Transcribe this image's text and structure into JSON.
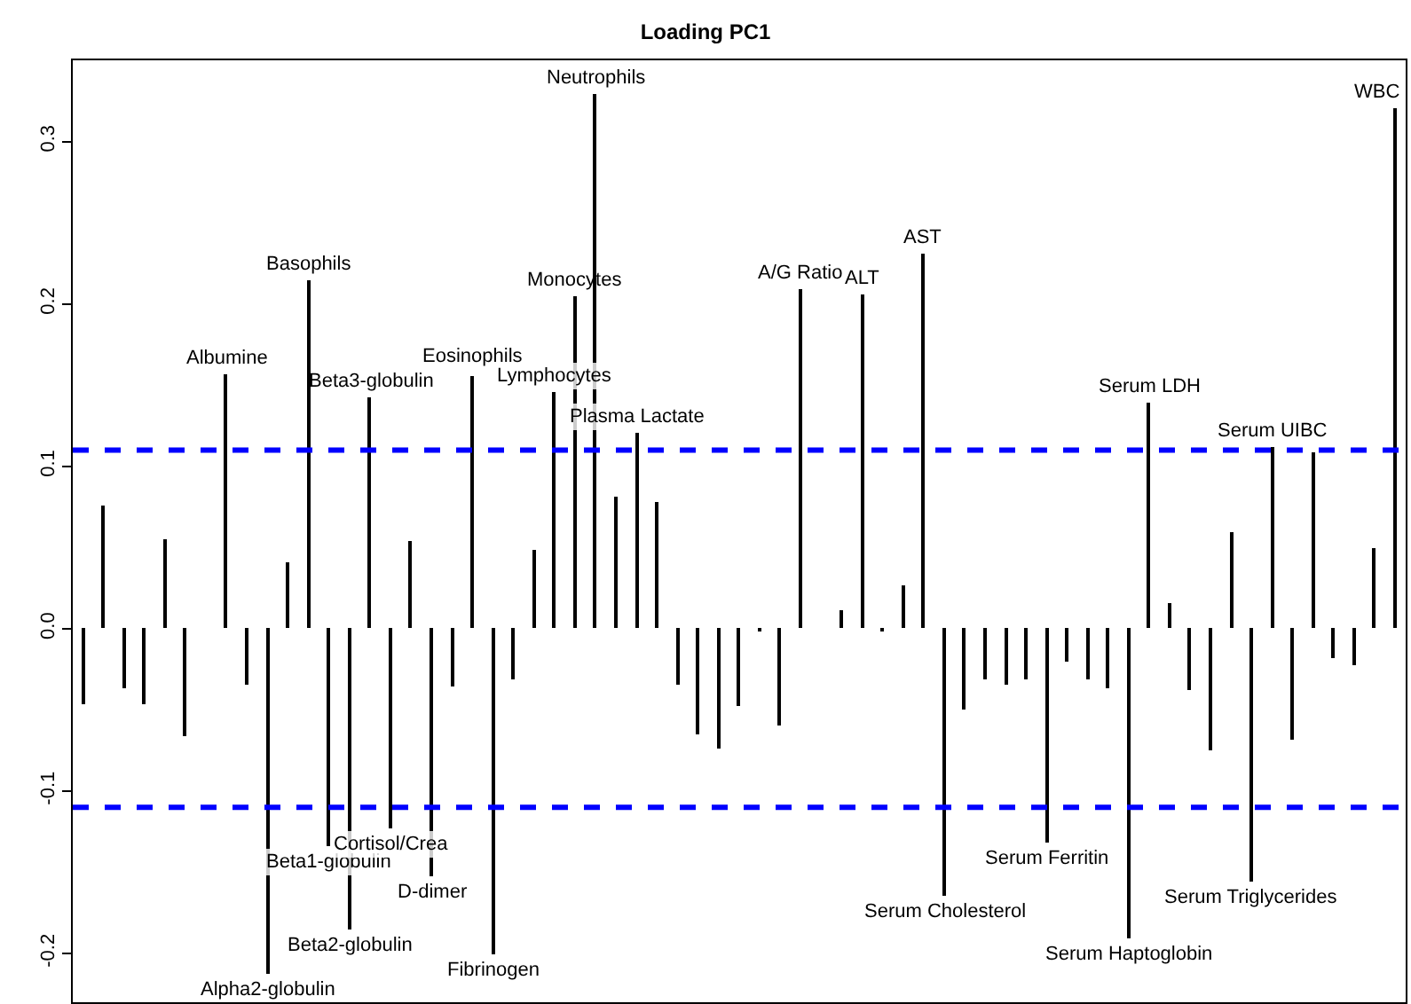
{
  "chart_data": {
    "type": "bar",
    "title": "Loading PC1",
    "tick_labels": "y",
    "categories": [
      null,
      null,
      null,
      null,
      null,
      null,
      null,
      null,
      null,
      null,
      null,
      null,
      null,
      null,
      null,
      null,
      null,
      null,
      null,
      null,
      null,
      null,
      null,
      null,
      null,
      null,
      null,
      null,
      null,
      null,
      null,
      null,
      null,
      null,
      null,
      null,
      null,
      null,
      null,
      null,
      null,
      null,
      null,
      null,
      null,
      null,
      null,
      null,
      null,
      null,
      null,
      null,
      null,
      null,
      null,
      null,
      null,
      null,
      null,
      null,
      null,
      null,
      null,
      null,
      null
    ],
    "series": [
      {
        "color": "#000000",
        "values": [
          -0.046,
          0.076,
          -0.037,
          -0.047,
          0.055,
          -0.066,
          null,
          0.157,
          -0.034,
          -0.213,
          0.041,
          0.215,
          -0.134,
          -0.185,
          0.143,
          -0.123,
          0.054,
          -0.152,
          -0.036,
          0.156,
          -0.2,
          -0.031,
          0.048,
          0.146,
          0.205,
          0.329,
          0.081,
          0.121,
          0.078,
          -0.035,
          -0.065,
          -0.074,
          -0.048,
          -0.001,
          -0.06,
          0.209,
          null,
          0.011,
          0.206,
          -0.001,
          0.027,
          0.231,
          -0.165,
          -0.05,
          -0.031,
          -0.034,
          -0.031,
          -0.132,
          -0.02,
          -0.031,
          -0.037,
          -0.191,
          0.139,
          0.016,
          -0.038,
          -0.075,
          0.06,
          -0.156,
          0.112,
          -0.068,
          0.109,
          -0.018,
          -0.022,
          0.05,
          0.321
        ],
        "value_labels": [
          null,
          null,
          null,
          null,
          null,
          null,
          null,
          "Albumine",
          null,
          "Alpha2-globulin",
          null,
          "Basophils",
          "Beta1-globulin",
          "Beta2-globulin",
          "Beta3-globulin",
          "Cortisol/Crea",
          null,
          "D-dimer",
          null,
          "Eosinophils",
          "Fibrinogen",
          null,
          null,
          "Lymphocytes",
          "Monocytes",
          "Neutrophils",
          null,
          "Plasma Lactate",
          null,
          null,
          null,
          null,
          null,
          null,
          null,
          "A/G Ratio",
          null,
          null,
          "ALT",
          null,
          null,
          "AST",
          "Serum Cholesterol",
          null,
          null,
          null,
          null,
          "Serum Ferritin",
          null,
          null,
          null,
          "Serum Haptoglobin",
          "Serum LDH",
          null,
          null,
          null,
          null,
          "Serum Triglycerides",
          "Serum UIBC",
          null,
          null,
          null,
          null,
          null,
          "WBC"
        ]
      }
    ],
    "ylim": [
      -0.23,
      0.35
    ],
    "yticks": [
      -0.2,
      -0.1,
      {
        "value": 0,
        "label": "0.0"
      },
      0.1,
      0.2,
      0.3
    ],
    "ref_lines": [
      {
        "axis": "y",
        "value": 0.11,
        "color": "#0000ff",
        "line_style": "dashed"
      },
      {
        "axis": "y",
        "value": -0.11,
        "color": "#0000ff",
        "line_style": "dashed"
      }
    ]
  }
}
